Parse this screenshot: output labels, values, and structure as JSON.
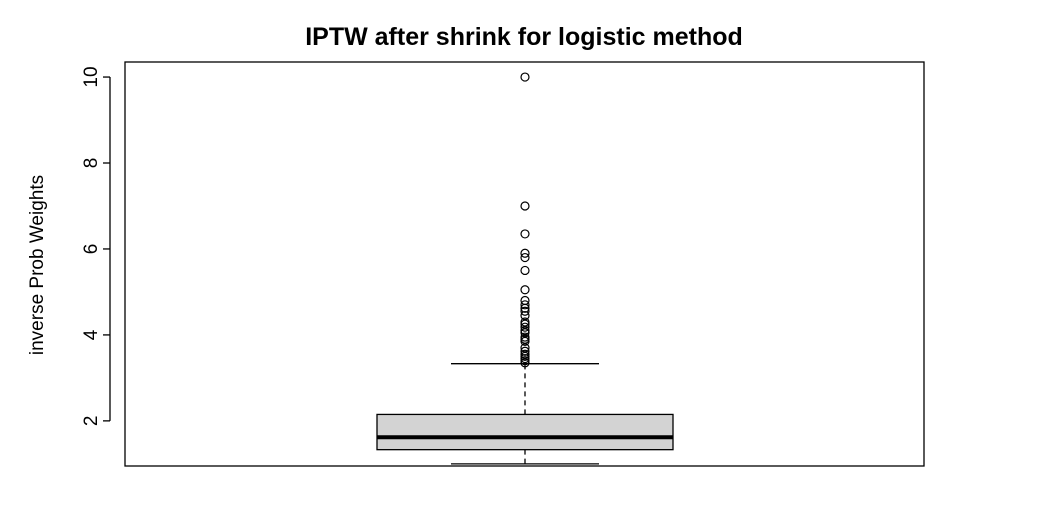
{
  "chart_data": {
    "type": "boxplot",
    "title": "IPTW after shrink for logistic method",
    "xlabel": "",
    "ylabel": "inverse Prob Weights",
    "ylim": [
      0.95,
      10.35
    ],
    "yticks": [
      2,
      4,
      6,
      8,
      10
    ],
    "ytick_labels": [
      "2",
      "4",
      "6",
      "8",
      "10"
    ],
    "box": {
      "whisker_low": 1.0,
      "q1": 1.33,
      "median": 1.62,
      "q3": 2.15,
      "whisker_high": 3.33
    },
    "outliers": [
      3.35,
      3.4,
      3.45,
      3.5,
      3.55,
      3.62,
      3.7,
      3.85,
      3.9,
      3.95,
      4.05,
      4.1,
      4.18,
      4.25,
      4.3,
      4.45,
      4.55,
      4.62,
      4.7,
      4.8,
      5.05,
      5.5,
      5.8,
      5.9,
      6.35,
      7.0,
      10.0
    ],
    "colors": {
      "box_fill": "#d3d3d3",
      "stroke": "#000000",
      "background": "#ffffff"
    },
    "grid": false,
    "legend": "none"
  }
}
